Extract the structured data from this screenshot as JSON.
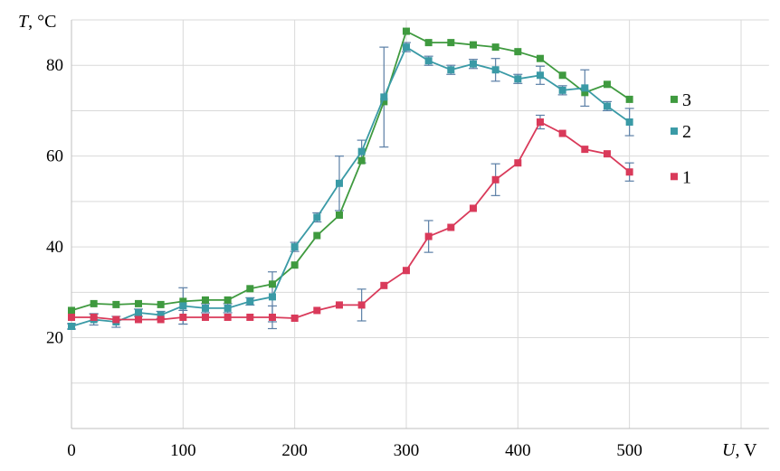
{
  "chart_data": {
    "type": "line",
    "xlabel": "U, V",
    "ylabel": "T, °C",
    "x_axis": {
      "var": "U",
      "unit": ", V"
    },
    "y_axis": {
      "var": "T",
      "unit": ", °C"
    },
    "xlim": [
      0,
      625
    ],
    "ylim": [
      0,
      90
    ],
    "x_ticks": [
      0,
      100,
      200,
      300,
      400,
      500
    ],
    "y_ticks": [
      20,
      40,
      60,
      80
    ],
    "y_gridlines": [
      10,
      20,
      30,
      40,
      50,
      60,
      70,
      80,
      90
    ],
    "x_gridlines": [
      0,
      100,
      200,
      300,
      400,
      500,
      600
    ],
    "grid": true,
    "legend_position": "right",
    "series": [
      {
        "name": "3",
        "color": "#3f9a3f",
        "x": [
          0,
          20,
          40,
          60,
          80,
          100,
          120,
          140,
          160,
          180,
          200,
          220,
          240,
          260,
          280,
          300,
          320,
          340,
          360,
          380,
          400,
          420,
          440,
          460,
          480,
          500
        ],
        "y": [
          26,
          27.5,
          27.3,
          27.5,
          27.3,
          28,
          28.3,
          28.3,
          30.8,
          31.8,
          36,
          42.5,
          47,
          59,
          72,
          87.5,
          85,
          85,
          84.5,
          84,
          83,
          81.5,
          77.8,
          74,
          75.8,
          72.5
        ]
      },
      {
        "name": "2",
        "color": "#3a9aa6",
        "x": [
          0,
          20,
          40,
          60,
          80,
          100,
          120,
          140,
          160,
          180,
          200,
          220,
          240,
          260,
          280,
          300,
          320,
          340,
          360,
          380,
          400,
          420,
          440,
          460,
          480,
          500
        ],
        "y": [
          22.5,
          24,
          23.5,
          25.5,
          25,
          27,
          26.5,
          26.5,
          28,
          29,
          40,
          46.5,
          54,
          61,
          73,
          84,
          81,
          79,
          80.3,
          79,
          77,
          77.8,
          74.5,
          75,
          71,
          67.5
        ],
        "error": [
          0.6,
          1.2,
          1.2,
          0.8,
          0.8,
          4,
          1,
          1,
          0.8,
          5.5,
          1,
          1,
          6,
          2.5,
          11,
          1,
          1,
          1,
          1,
          2.5,
          1,
          2,
          1,
          4,
          1,
          3
        ]
      },
      {
        "name": "1",
        "color": "#d93a5a",
        "x": [
          0,
          20,
          40,
          60,
          80,
          100,
          120,
          140,
          160,
          180,
          200,
          220,
          240,
          260,
          280,
          300,
          320,
          340,
          360,
          380,
          400,
          420,
          440,
          460,
          480,
          500
        ],
        "y": [
          24.5,
          24.5,
          24,
          24,
          24,
          24.5,
          24.5,
          24.5,
          24.5,
          24.5,
          24.3,
          26,
          27.2,
          27.2,
          31.5,
          34.8,
          42.3,
          44.3,
          48.5,
          54.8,
          58.5,
          67.5,
          65,
          61.5,
          60.5,
          56.5
        ],
        "error": [
          0,
          0.8,
          0,
          0,
          0,
          1.5,
          0,
          0,
          0,
          2.5,
          0,
          0,
          0,
          3.5,
          0,
          0,
          3.5,
          0,
          0,
          3.5,
          0,
          1.5,
          0,
          0,
          0,
          2
        ]
      }
    ]
  }
}
